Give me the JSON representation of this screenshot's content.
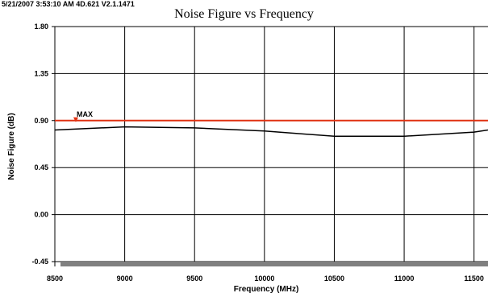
{
  "header": {
    "stamp": "5/21/2007 3:53:10 AM 4D.621 V2.1.1471"
  },
  "chart_data": {
    "type": "line",
    "title": "Noise Figure vs Frequency",
    "xlabel": "Frequency (MHz)",
    "ylabel": "Noise Figure (dB)",
    "xlim": [
      8500,
      11600
    ],
    "ylim": [
      -0.45,
      1.8
    ],
    "x_ticks": [
      "8500",
      "9000",
      "9500",
      "10000",
      "10500",
      "11000",
      "11500"
    ],
    "y_ticks": [
      "1.80",
      "1.35",
      "0.90",
      "0.45",
      "0.00",
      "-0.45"
    ],
    "grid": true,
    "series": [
      {
        "color": "#000000",
        "x": [
          8500,
          9000,
          9500,
          10000,
          10500,
          11000,
          11500,
          11600
        ],
        "values": [
          0.81,
          0.84,
          0.83,
          0.8,
          0.75,
          0.75,
          0.79,
          0.81
        ]
      }
    ],
    "limit_line": {
      "label": "MAX",
      "value": 0.9,
      "marker_x": 8650,
      "color": "#e03010"
    }
  }
}
